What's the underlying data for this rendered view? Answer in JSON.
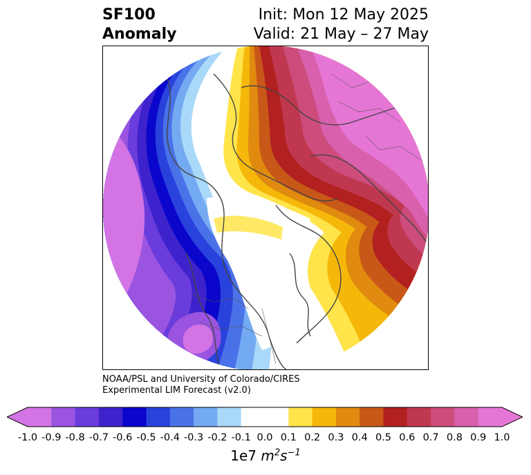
{
  "title": {
    "left_line1": "SF100",
    "left_line2": "Anomaly",
    "right_line1": "Init: Mon 12 May 2025",
    "right_line2": "Valid: 21 May – 27 May"
  },
  "credit": {
    "line1": "NOAA/PSL and University of Colorado/CIRES",
    "line2": "Experimental LIM Forecast (v2.0)"
  },
  "colorbar": {
    "ticks": [
      "-1.0",
      "-0.9",
      "-0.8",
      "-0.7",
      "-0.6",
      "-0.5",
      "-0.4",
      "-0.3",
      "-0.2",
      "-0.1",
      "0.0",
      "0.1",
      "0.2",
      "0.3",
      "0.4",
      "0.5",
      "0.6",
      "0.7",
      "0.8",
      "0.9",
      "1.0"
    ],
    "colors": [
      "#d474e4",
      "#9a54e0",
      "#6a3cdc",
      "#3e22cc",
      "#0a06cc",
      "#2a42dc",
      "#4a72e8",
      "#74aaf2",
      "#aad8f8",
      "#ffffff",
      "#ffffff",
      "#ffe44a",
      "#f5b80a",
      "#e08a10",
      "#c85818",
      "#b22020",
      "#c03850",
      "#cc4c7c",
      "#d860ac",
      "#e676d6"
    ],
    "units_base": "1e7 ",
    "units_m": "m",
    "units_m_exp": "2",
    "units_s": "s",
    "units_s_exp": "−1"
  },
  "colors": {
    "low_extreme": "#d474e4",
    "high_extreme": "#e676d6",
    "coastline": "#444444"
  }
}
